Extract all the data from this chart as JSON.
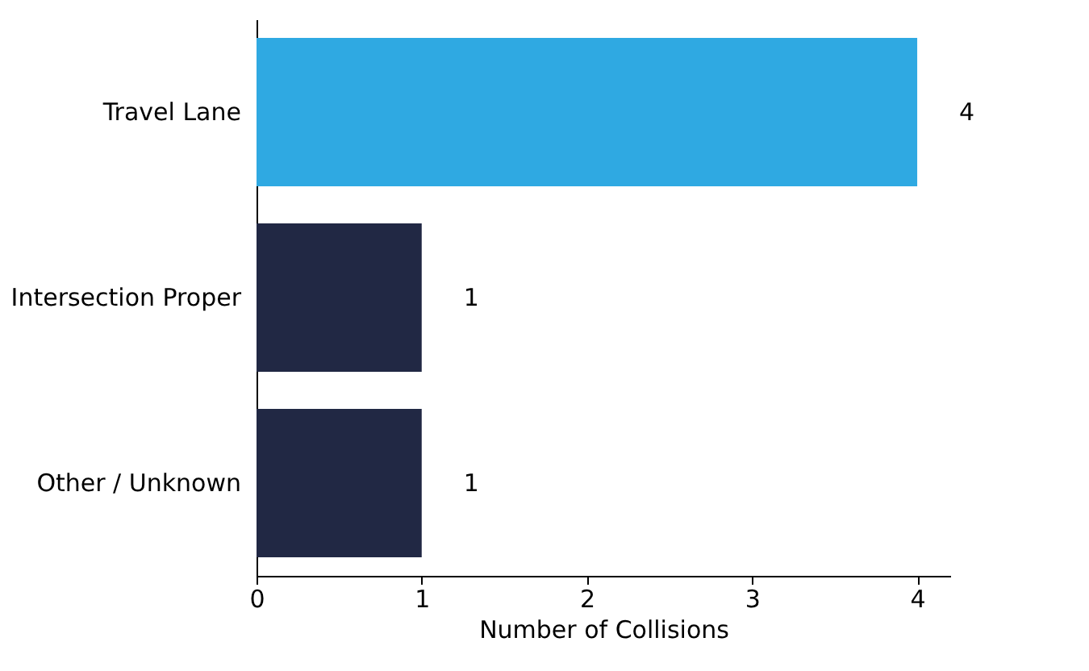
{
  "chart_data": {
    "type": "bar",
    "orientation": "horizontal",
    "xlabel": "Number of Collisions",
    "categories": [
      "Travel Lane",
      "Intersection Proper",
      "Other / Unknown"
    ],
    "values": [
      4,
      1,
      1
    ],
    "colors": [
      "#2fa9e2",
      "#212844",
      "#212844"
    ],
    "xlim": [
      0,
      4.2
    ],
    "xticks": [
      0,
      1,
      2,
      3,
      4
    ],
    "grid": false,
    "data_labels": true
  }
}
